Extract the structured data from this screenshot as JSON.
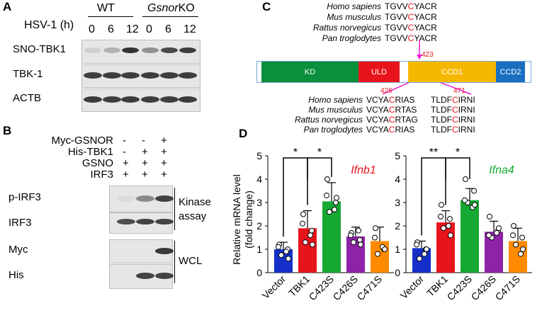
{
  "panelA": {
    "label": "A",
    "wt": "WT",
    "ko_gene": "Gsnor",
    "ko_suffix": "KO",
    "hsv_label": "HSV-1 (h)",
    "timepoints": [
      "0",
      "6",
      "12",
      "0",
      "6",
      "12"
    ],
    "blots": [
      "SNO-TBK1",
      "TBK-1",
      "ACTB"
    ]
  },
  "panelB": {
    "label": "B",
    "conditions": [
      {
        "name": "Myc-GSNOR",
        "signs": [
          "-",
          "-",
          "+"
        ]
      },
      {
        "name": "His-TBK1",
        "signs": [
          "-",
          "+",
          "+"
        ]
      },
      {
        "name": "GSNO",
        "signs": [
          "+",
          "+",
          "+"
        ]
      },
      {
        "name": "IRF3",
        "signs": [
          "+",
          "+",
          "+"
        ]
      }
    ],
    "blots": [
      "p-IRF3",
      "IRF3",
      "Myc",
      "His"
    ],
    "kinase_assay": [
      "Kinase",
      "assay"
    ],
    "wcl": "WCL"
  },
  "panelC": {
    "label": "C",
    "species": [
      "Homo sapiens",
      "Mus musculus",
      "Rattus norvegicus",
      "Pan troglodytes"
    ],
    "top_seq": [
      {
        "pre": "TGVV",
        "c": "C",
        "post": "YACR"
      },
      {
        "pre": "TGVV",
        "c": "C",
        "post": "YACR"
      },
      {
        "pre": "TGVV",
        "c": "C",
        "post": "YACR"
      },
      {
        "pre": "TGVV",
        "c": "C",
        "post": "YACR"
      }
    ],
    "seq426": [
      {
        "pre": "VCYA",
        "c": "C",
        "post": "RIAS"
      },
      {
        "pre": "VCYA",
        "c": "C",
        "post": "RTAS"
      },
      {
        "pre": "VCYA",
        "c": "C",
        "post": "RTAG"
      },
      {
        "pre": "VCYA",
        "c": "C",
        "post": "RIAS"
      }
    ],
    "seq471": [
      {
        "pre": "TLDF",
        "c": "C",
        "post": "IRNI"
      },
      {
        "pre": "TLDF",
        "c": "C",
        "post": "IRNI"
      },
      {
        "pre": "TLDF",
        "c": "C",
        "post": "IRNI"
      },
      {
        "pre": "TLDF",
        "c": "C",
        "post": "IRNI"
      }
    ],
    "domains": [
      {
        "name": "KD",
        "color": "#0a8f3c"
      },
      {
        "name": "ULD",
        "color": "#e8141b"
      },
      {
        "name": "CCD1",
        "color": "#f5b800"
      },
      {
        "name": "CCD2",
        "color": "#1a6fc0"
      }
    ],
    "sites": {
      "s423": "423",
      "s426": "426",
      "s471": "471"
    },
    "arrow_color": "#ee18d6"
  },
  "panelD": {
    "label": "D",
    "ylabel1": "Relative mRNA level",
    "ylabel2": "(fold change)"
  },
  "chart_data": [
    {
      "type": "bar",
      "title": "Ifnb1",
      "title_color": "#e8141b",
      "ylabel": "Relative mRNA level (fold change)",
      "categories": [
        "Vector",
        "TBK1",
        "C423S",
        "C426S",
        "C471S"
      ],
      "colors": [
        "#1530c8",
        "#e8141b",
        "#15a832",
        "#8e23a8",
        "#ff8a00"
      ],
      "values": [
        1.0,
        1.9,
        3.05,
        1.55,
        1.35
      ],
      "errors": [
        0.3,
        0.75,
        0.8,
        0.4,
        0.6
      ],
      "points": [
        [
          1.2,
          1.0,
          0.75,
          0.9,
          1.1,
          0.6
        ],
        [
          2.5,
          1.8,
          1.3,
          1.6,
          2.1,
          1.2
        ],
        [
          4.0,
          3.0,
          2.6,
          2.7,
          3.3,
          3.2
        ],
        [
          1.7,
          1.4,
          1.3,
          1.8,
          1.6,
          1.2
        ],
        [
          1.9,
          1.0,
          0.8,
          1.1,
          1.5,
          1.0
        ]
      ],
      "ylim": [
        0,
        5
      ],
      "yticks": [
        0,
        1,
        2,
        3,
        4,
        5
      ],
      "significance": [
        {
          "pair": [
            0,
            1
          ],
          "label": "*"
        },
        {
          "pair": [
            1,
            2
          ],
          "label": "*"
        }
      ]
    },
    {
      "type": "bar",
      "title": "Ifna4",
      "title_color": "#15a832",
      "ylabel": "Relative mRNA level (fold change)",
      "categories": [
        "Vector",
        "TBK1",
        "C423S",
        "C426S",
        "C471S"
      ],
      "colors": [
        "#1530c8",
        "#e8141b",
        "#15a832",
        "#8e23a8",
        "#ff8a00"
      ],
      "values": [
        1.05,
        2.15,
        3.1,
        1.75,
        1.35
      ],
      "errors": [
        0.3,
        0.5,
        0.5,
        0.45,
        0.55
      ],
      "points": [
        [
          1.3,
          1.0,
          0.6,
          0.8,
          1.2,
          1.0
        ],
        [
          2.9,
          2.3,
          1.9,
          2.0,
          2.4,
          1.6
        ],
        [
          4.0,
          3.5,
          3.0,
          2.8,
          3.1,
          2.9
        ],
        [
          2.4,
          1.8,
          1.5,
          1.7,
          1.6,
          1.9
        ],
        [
          2.0,
          1.5,
          1.2,
          0.8,
          1.6,
          1.0
        ]
      ],
      "ylim": [
        0,
        5
      ],
      "yticks": [
        0,
        1,
        2,
        3,
        4,
        5
      ],
      "significance": [
        {
          "pair": [
            0,
            1
          ],
          "label": "**"
        },
        {
          "pair": [
            1,
            2
          ],
          "label": "*"
        }
      ]
    }
  ]
}
